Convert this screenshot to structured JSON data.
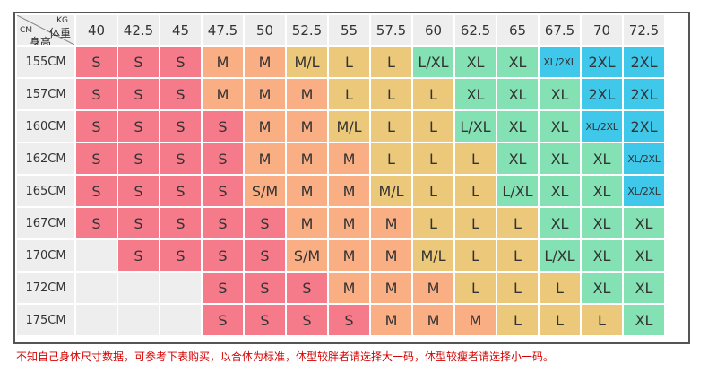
{
  "header": {
    "corner_kg": "KG",
    "corner_weight": "体重",
    "corner_cm": "CM",
    "corner_height": "身高",
    "weights": [
      "40",
      "42.5",
      "45",
      "47.5",
      "50",
      "52.5",
      "55",
      "57.5",
      "60",
      "62.5",
      "65",
      "67.5",
      "70",
      "72.5"
    ]
  },
  "rows": [
    {
      "height": "155CM",
      "cells": [
        "S",
        "S",
        "S",
        "M",
        "M",
        "M/L",
        "L",
        "L",
        "L/XL",
        "XL",
        "XL",
        "XL/2XL",
        "2XL",
        "2XL"
      ]
    },
    {
      "height": "157CM",
      "cells": [
        "S",
        "S",
        "S",
        "M",
        "M",
        "M",
        "L",
        "L",
        "L",
        "XL",
        "XL",
        "XL",
        "2XL",
        "2XL"
      ]
    },
    {
      "height": "160CM",
      "cells": [
        "S",
        "S",
        "S",
        "S",
        "M",
        "M",
        "M/L",
        "L",
        "L",
        "L/XL",
        "XL",
        "XL",
        "XL/2XL",
        "2XL"
      ]
    },
    {
      "height": "162CM",
      "cells": [
        "S",
        "S",
        "S",
        "S",
        "M",
        "M",
        "M",
        "L",
        "L",
        "L",
        "XL",
        "XL",
        "XL",
        "XL/2XL"
      ]
    },
    {
      "height": "165CM",
      "cells": [
        "S",
        "S",
        "S",
        "S",
        "S/M",
        "M",
        "M",
        "M/L",
        "L",
        "L",
        "L/XL",
        "XL",
        "XL",
        "XL/2XL"
      ]
    },
    {
      "height": "167CM",
      "cells": [
        "S",
        "S",
        "S",
        "S",
        "S",
        "M",
        "M",
        "M",
        "L",
        "L",
        "L",
        "XL",
        "XL",
        "XL"
      ]
    },
    {
      "height": "170CM",
      "cells": [
        "",
        "S",
        "S",
        "S",
        "S",
        "S/M",
        "M",
        "M",
        "M/L",
        "L",
        "L",
        "L/XL",
        "XL",
        "XL"
      ]
    },
    {
      "height": "172CM",
      "cells": [
        "",
        "",
        "",
        "S",
        "S",
        "S",
        "M",
        "M",
        "M",
        "L",
        "L",
        "L",
        "XL",
        "XL"
      ]
    },
    {
      "height": "175CM",
      "cells": [
        "",
        "",
        "",
        "S",
        "S",
        "S",
        "S",
        "M",
        "M",
        "M",
        "L",
        "L",
        "L",
        "XL"
      ]
    }
  ],
  "colors": {
    "S": "#f57a8a",
    "M": "#f9ae84",
    "L": "#ecc97a",
    "XL": "#83e1b3",
    "2XL": "#40c8ea",
    "empty": "#eeeeee"
  },
  "footer": {
    "note": "不知自己身体尺寸数据，可参考下表购买，以合体为标准，体型较胖者请选择大一码，体型较瘦者请选择小一码。"
  }
}
